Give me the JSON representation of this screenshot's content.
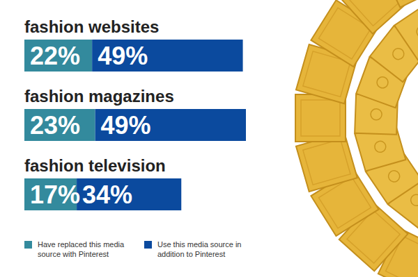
{
  "chart_data": {
    "type": "bar",
    "orientation": "horizontal",
    "stacked": true,
    "data_labels": true,
    "tick_labels": false,
    "legend": "lower left",
    "categories": [
      "fashion websites",
      "fashion magazines",
      "fashion television"
    ],
    "series": [
      {
        "name": "Have replaced this media source with Pinterest",
        "color": "#338a9d",
        "values": [
          22,
          23,
          17
        ],
        "value_labels": [
          "22%",
          "23%",
          "17%"
        ]
      },
      {
        "name": "Use this media source in addition to Pinterest",
        "color": "#0b4a9e",
        "values": [
          49,
          49,
          34
        ],
        "value_labels": [
          "49%",
          "49%",
          "34%"
        ]
      }
    ]
  }
}
